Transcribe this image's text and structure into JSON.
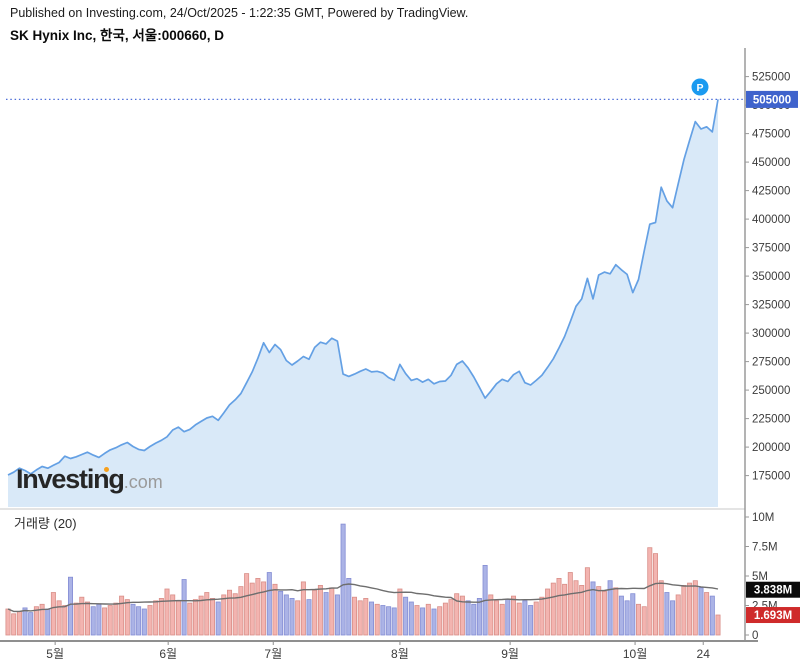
{
  "header": {
    "published": "Published on Investing.com, 24/Oct/2025 - 1:22:35 GMT, Powered by TradingView.",
    "title": "SK Hynix Inc, 한국, 서울:000660, D"
  },
  "watermark": {
    "brand": "Investing",
    "suffix": ".com"
  },
  "chart_data": {
    "type": "area",
    "symbol": "SK Hynix Inc",
    "exchange_code": "서울:000660",
    "interval": "D",
    "title": "SK Hynix Inc, 한국, 서울:000660, D",
    "volume_label": "거래량 (20)",
    "volume_ma_period": 20,
    "last_price": 505000,
    "last_price_label": "505000",
    "volume_ma_label": "3.838M",
    "last_volume_label": "1.693M",
    "marker_label": "P",
    "price_axis_ticks": [
      175000,
      200000,
      225000,
      250000,
      275000,
      300000,
      325000,
      350000,
      375000,
      400000,
      425000,
      450000,
      475000,
      500000,
      525000
    ],
    "price_axis_range": [
      160000,
      540000
    ],
    "volume_axis_ticks": [
      {
        "v": 0,
        "label": "0"
      },
      {
        "v": 2.5,
        "label": "2.5M"
      },
      {
        "v": 5,
        "label": "5M"
      },
      {
        "v": 7.5,
        "label": "7.5M"
      },
      {
        "v": 10,
        "label": "10M"
      }
    ],
    "volume_axis_range_millions": [
      0,
      10
    ],
    "month_ticks": [
      {
        "label": "5월",
        "i": 8.3
      },
      {
        "label": "6월",
        "i": 28.2
      },
      {
        "label": "7월",
        "i": 46.7
      },
      {
        "label": "8월",
        "i": 69.0
      },
      {
        "label": "9월",
        "i": 88.4
      },
      {
        "label": "10월",
        "i": 110.4
      },
      {
        "label": "24",
        "i": 122.4
      }
    ],
    "price_series": [
      175500,
      178000,
      181500,
      179500,
      176500,
      180000,
      183000,
      181500,
      184000,
      186500,
      192000,
      190000,
      191500,
      193500,
      195500,
      193000,
      191000,
      194500,
      197500,
      199500,
      202000,
      204000,
      200500,
      198000,
      197000,
      200500,
      203500,
      206000,
      209000,
      215000,
      217500,
      213500,
      215500,
      219500,
      222500,
      225500,
      227000,
      223500,
      230000,
      237000,
      241500,
      247000,
      256500,
      266000,
      278000,
      291500,
      283000,
      290000,
      285500,
      276000,
      272000,
      275500,
      279500,
      277000,
      287500,
      292000,
      290500,
      295500,
      293000,
      264000,
      262000,
      264000,
      266500,
      268500,
      266000,
      266500,
      265000,
      261000,
      258500,
      272500,
      264500,
      258500,
      260000,
      257000,
      259500,
      255500,
      257500,
      258000,
      263000,
      272500,
      275500,
      269500,
      261500,
      252500,
      243000,
      249000,
      255500,
      259500,
      257500,
      263500,
      266500,
      256500,
      254500,
      258500,
      263000,
      270000,
      277500,
      287000,
      297000,
      310000,
      323500,
      330000,
      348000,
      330000,
      351000,
      353500,
      352000,
      360000,
      355500,
      351500,
      335500,
      347000,
      372000,
      395500,
      397000,
      428000,
      416000,
      410000,
      431000,
      452000,
      469000,
      485500,
      479000,
      481000,
      476500,
      505000
    ],
    "volume_series_millions": [
      2.2,
      1.8,
      2.0,
      2.3,
      1.9,
      2.4,
      2.6,
      2.2,
      3.6,
      2.9,
      2.5,
      4.9,
      2.7,
      3.2,
      2.8,
      2.4,
      2.6,
      2.3,
      2.5,
      2.7,
      3.3,
      3.0,
      2.6,
      2.4,
      2.2,
      2.5,
      2.9,
      3.1,
      3.9,
      3.4,
      2.9,
      4.7,
      2.7,
      3.0,
      3.3,
      3.6,
      3.1,
      2.8,
      3.4,
      3.8,
      3.5,
      4.1,
      5.2,
      4.4,
      4.8,
      4.5,
      5.3,
      4.3,
      3.7,
      3.4,
      3.1,
      2.9,
      4.5,
      3.0,
      3.8,
      4.2,
      3.6,
      4.0,
      3.4,
      9.4,
      4.8,
      3.2,
      2.9,
      3.1,
      2.8,
      2.6,
      2.5,
      2.4,
      2.3,
      3.9,
      3.2,
      2.8,
      2.5,
      2.3,
      2.6,
      2.2,
      2.4,
      2.7,
      3.0,
      3.5,
      3.3,
      2.9,
      2.6,
      3.1,
      5.9,
      3.4,
      2.9,
      2.6,
      3.0,
      3.3,
      2.7,
      2.9,
      2.5,
      2.8,
      3.2,
      3.9,
      4.4,
      4.8,
      4.3,
      5.3,
      4.6,
      4.2,
      5.7,
      4.5,
      4.1,
      3.7,
      4.6,
      4.0,
      3.3,
      2.9,
      3.5,
      2.6,
      2.4,
      7.4,
      6.9,
      4.6,
      3.6,
      2.9,
      3.4,
      4.2,
      4.4,
      4.6,
      4.0,
      3.6,
      3.3,
      1.693
    ],
    "colors": {
      "price_line": "#64a0e4",
      "price_area_fill": "#d9e9f8",
      "dotted_last_price_line": "#4e6fd8",
      "last_price_label_bg": "#3f63cc",
      "volume_ma_label_bg": "#0a0a0a",
      "last_volume_label_bg": "#cf2b2b",
      "volume_up_fill": "#f3b4b0",
      "volume_up_stroke": "#d98f89",
      "volume_down_fill": "#abb3e6",
      "volume_down_stroke": "#848dd4",
      "volume_ma_line": "#6e6e6e",
      "axis_text": "#3c3c3c",
      "axis_line": "#9a9a9a",
      "marker_badge": "#1a9af0",
      "watermark_dot": "#f6a01d"
    }
  }
}
